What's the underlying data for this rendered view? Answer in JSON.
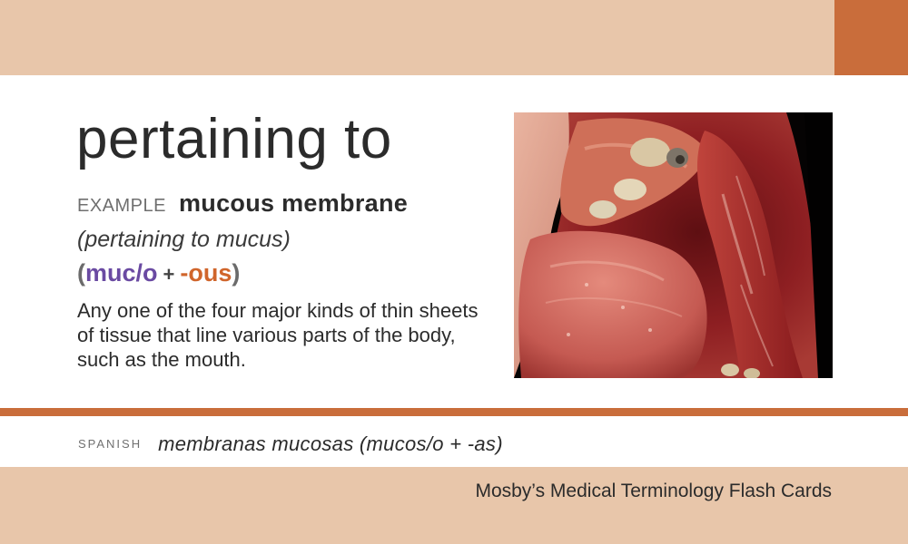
{
  "card": {
    "term": "pertaining to",
    "example_label": "EXAMPLE",
    "example_word": "mucous membrane",
    "gloss": "(pertaining to mucus)",
    "parts": {
      "open": "(",
      "root": "muc/o",
      "plus": "+",
      "suffix": "-ous",
      "close": ")"
    },
    "definition": "Any one of the four major kinds of thin sheets of tissue that line various parts of the body, such as the mouth.",
    "spanish_label": "SPANISH",
    "spanish_text": "membranas mucosas (mucos/o + -as)",
    "publisher": "Mosby’s Medical Terminology Flash Cards"
  },
  "colors": {
    "band": "#e8c6aa",
    "accent": "#c96d3b",
    "root_purple": "#6a4aa2",
    "suffix_orange": "#d0652b"
  }
}
